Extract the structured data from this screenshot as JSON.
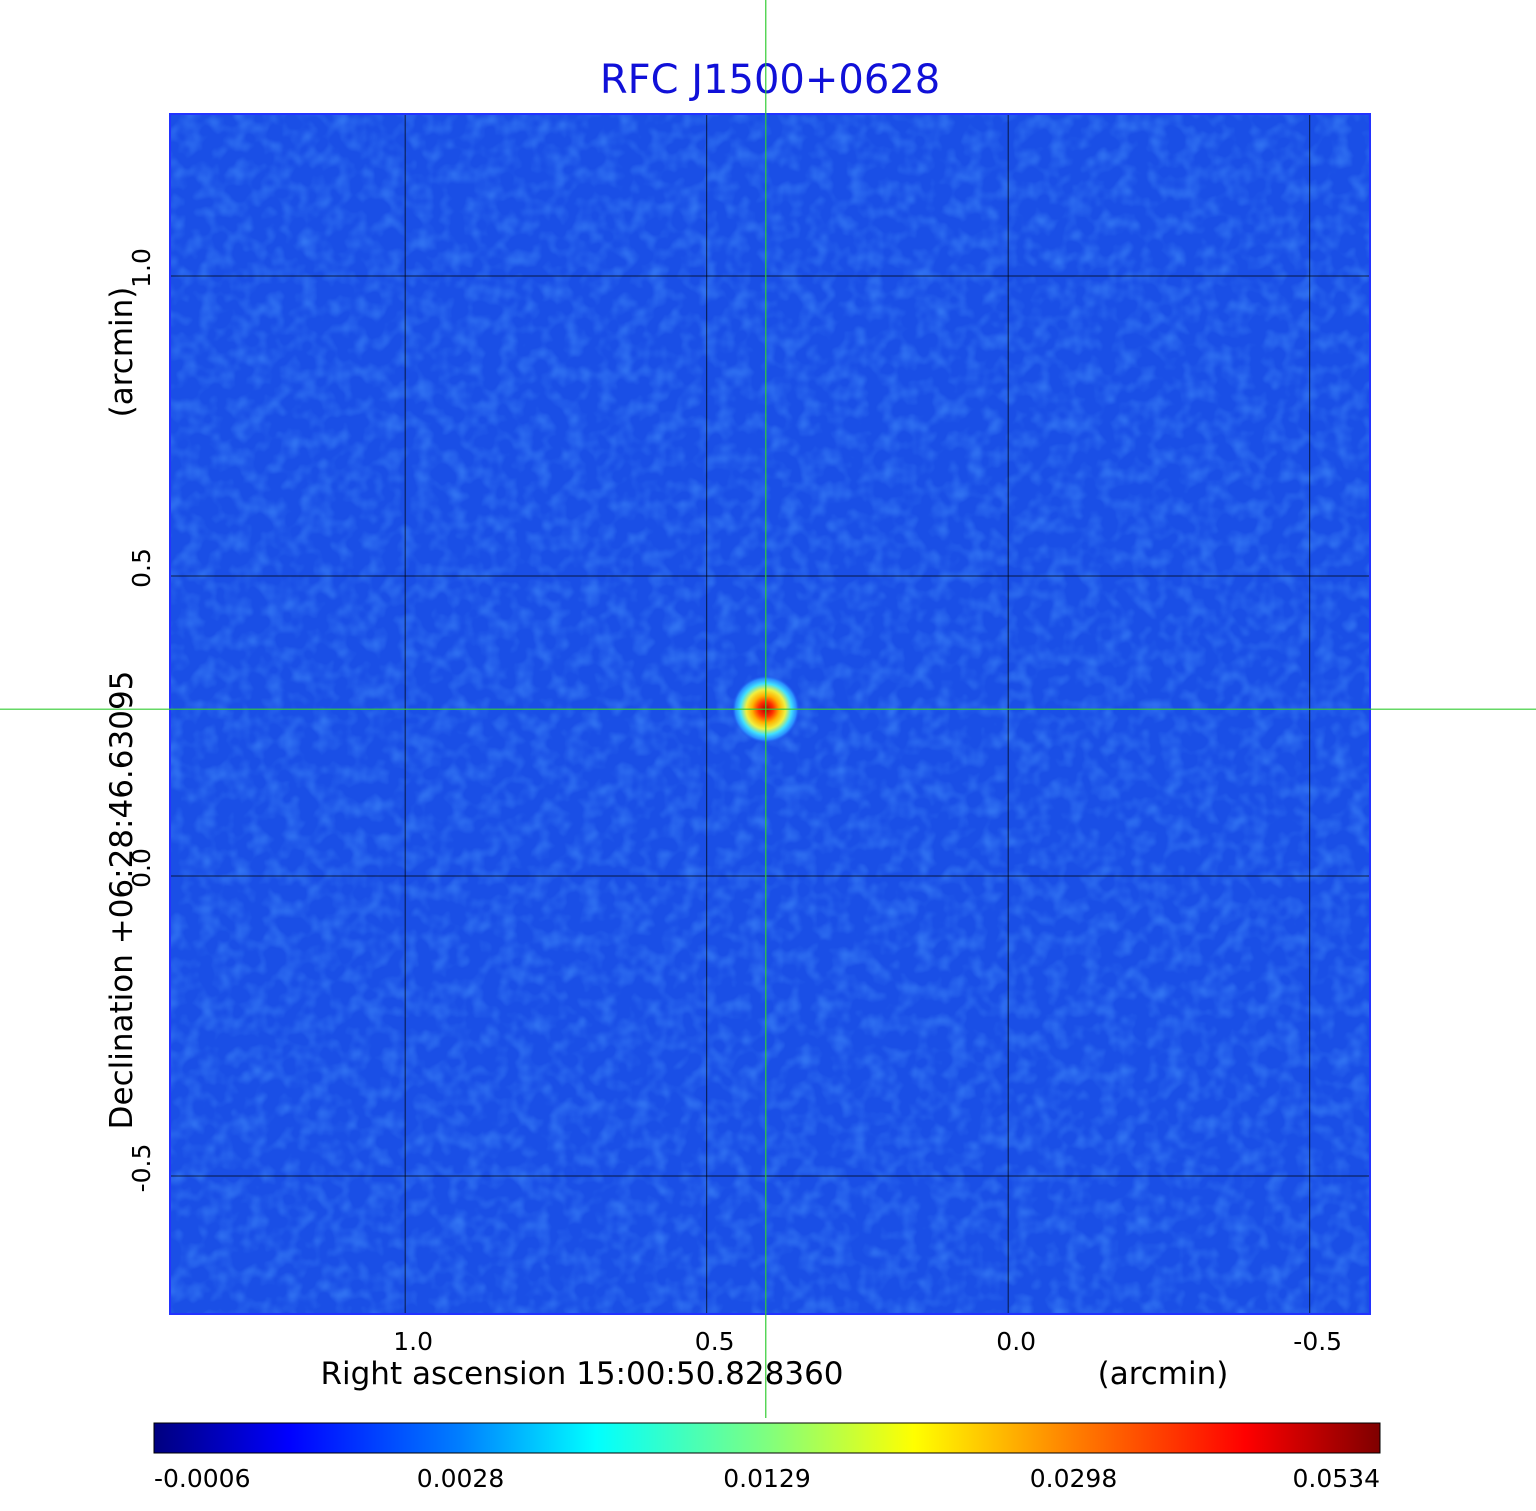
{
  "chart_data": {
    "type": "heatmap",
    "title": "RFC J1500+0628",
    "xlabel": "Right ascension  15:00:50.828360",
    "xunit": "(arcmin)",
    "ylabel": "Declination  +06:28:46.63095",
    "yunit": "(arcmin)",
    "xlim": [
      1.39,
      -0.6
    ],
    "ylim": [
      -0.73,
      1.27
    ],
    "x_ticks": [
      {
        "value": 1.0,
        "label": "1.0"
      },
      {
        "value": 0.5,
        "label": "0.5"
      },
      {
        "value": 0.0,
        "label": "0.0"
      },
      {
        "value": -0.5,
        "label": "-0.5"
      }
    ],
    "y_ticks": [
      {
        "value": 1.0,
        "label": "1.0"
      },
      {
        "value": 0.5,
        "label": "0.5"
      },
      {
        "value": 0.0,
        "label": "0.0"
      },
      {
        "value": -0.5,
        "label": "-0.5"
      }
    ],
    "grid": true,
    "colormap": "jet",
    "source_peak": {
      "x": 0.402,
      "y": 0.278,
      "value": 0.0534
    },
    "crosshair": {
      "x": 0.402,
      "y": 0.278,
      "color": "#33cc33"
    },
    "colorbar": {
      "placement": "bottom",
      "ticks": [
        {
          "value": -0.0006,
          "label": "-0.0006"
        },
        {
          "value": 0.0028,
          "label": "0.0028"
        },
        {
          "value": 0.0129,
          "label": "0.0129"
        },
        {
          "value": 0.0298,
          "label": "0.0298"
        },
        {
          "value": 0.0534,
          "label": "0.0534"
        }
      ]
    },
    "colors": {
      "title": "#1010d8",
      "background_map": "#1a4fe6",
      "grid": "#000000"
    }
  }
}
